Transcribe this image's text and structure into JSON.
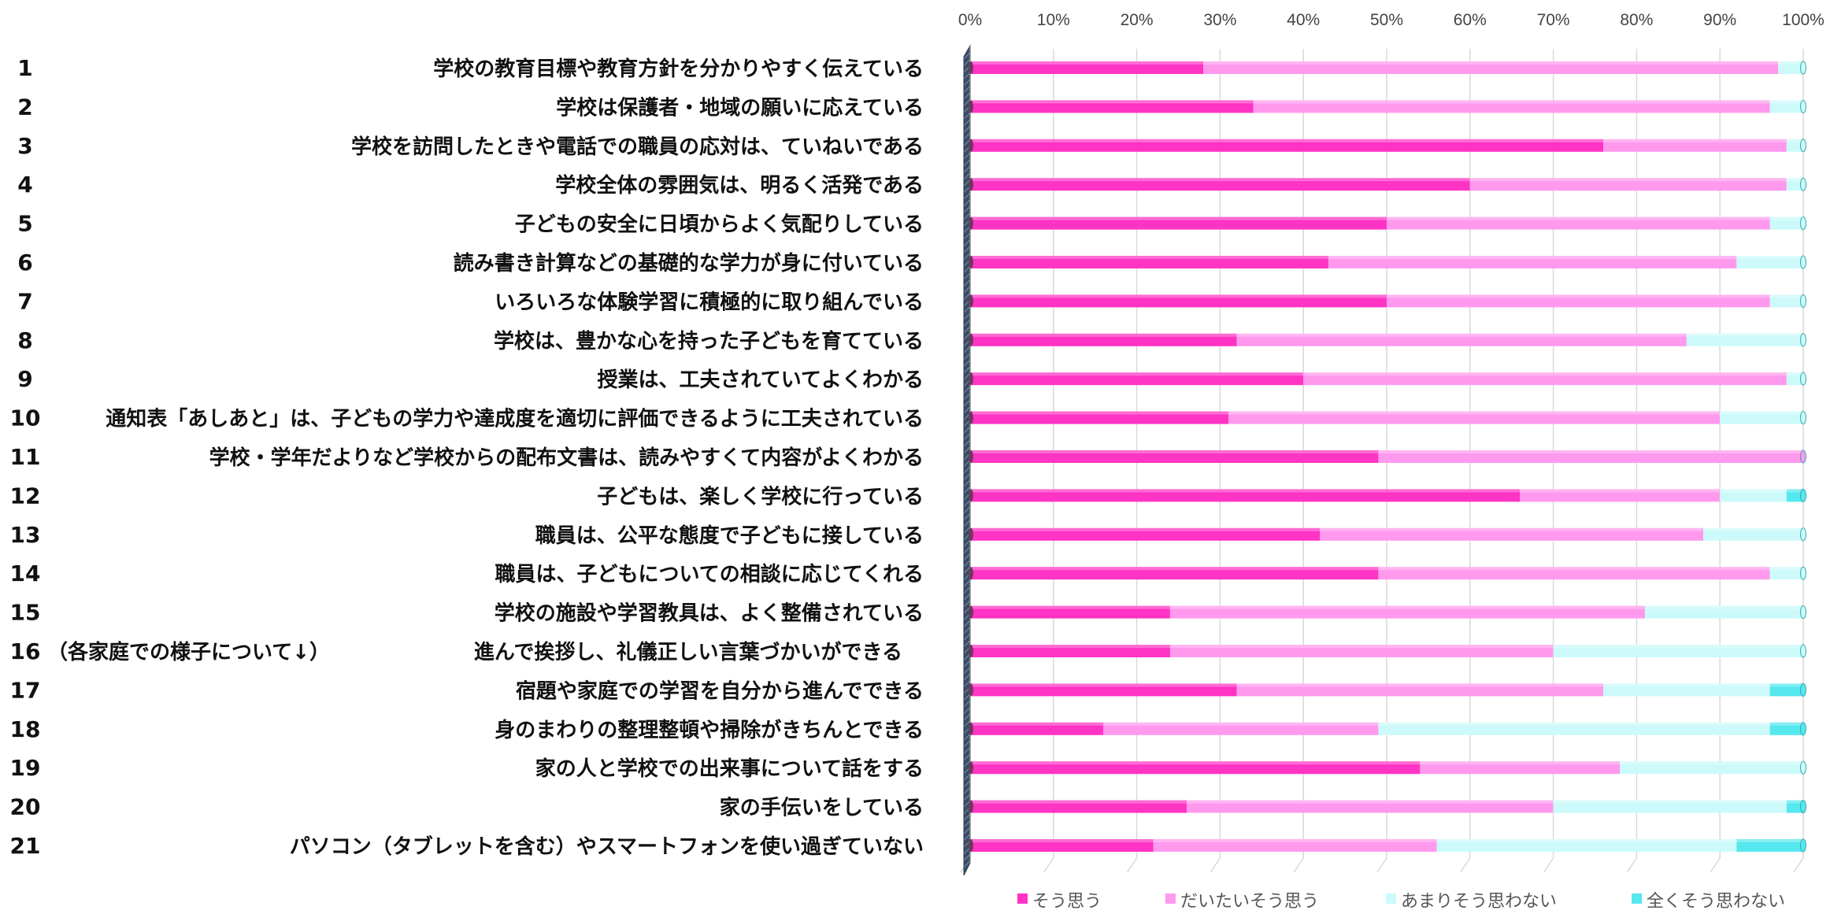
{
  "chart_data": {
    "type": "bar",
    "orientation": "horizontal",
    "stacked": true,
    "percent": true,
    "xlim": [
      0,
      100
    ],
    "x_ticks": [
      "0%",
      "10%",
      "20%",
      "30%",
      "40%",
      "50%",
      "60%",
      "70%",
      "80%",
      "90%",
      "100%"
    ],
    "grid": true,
    "legend_position": "bottom",
    "numbers": [
      "1",
      "2",
      "3",
      "4",
      "5",
      "6",
      "7",
      "8",
      "9",
      "10",
      "11",
      "12",
      "13",
      "14",
      "15",
      "16",
      "17",
      "18",
      "19",
      "20",
      "21"
    ],
    "categories": [
      "学校の教育目標や教育方針を分かりやすく伝えている",
      "学校は保護者・地域の願いに応えている",
      "学校を訪問したときや電話での職員の応対は、ていねいである",
      "学校全体の雰囲気は、明るく活発である",
      "子どもの安全に日頃からよく気配りしている",
      "読み書き計算などの基礎的な学力が身に付いている",
      "いろいろな体験学習に積極的に取り組んでいる",
      "学校は、豊かな心を持った子どもを育てている",
      "授業は、工夫されていてよくわかる",
      "通知表「あしあと」は、子どもの学力や達成度を適切に評価できるように工夫されている",
      "学校・学年だよりなど学校からの配布文書は、読みやすくて内容がよくわかる",
      "子どもは、楽しく学校に行っている",
      "職員は、公平な態度で子どもに接している",
      "職員は、子どもについての相談に応じてくれる",
      "学校の施設や学習教具は、よく整備されている",
      "進んで挨拶し、礼儀正しい言葉づかいができる",
      "宿題や家庭での学習を自分から進んでできる",
      "身のまわりの整理整頓や掃除がきちんとできる",
      "家の人と学校での出来事について話をする",
      "家の手伝いをしている",
      "パソコン（タブレットを含む）やスマートフォンを使い過ぎていない"
    ],
    "section_note": "（各家庭での様子について↓）",
    "series": [
      {
        "name": "そう思う",
        "color": "#ff33c4",
        "values": [
          28,
          34,
          76,
          60,
          50,
          43,
          50,
          32,
          40,
          31,
          49,
          66,
          42,
          49,
          24,
          24,
          32,
          16,
          54,
          26,
          22
        ]
      },
      {
        "name": "だいたいそう思う",
        "color": "#ff99ee",
        "values": [
          69,
          62,
          22,
          38,
          46,
          49,
          46,
          54,
          58,
          59,
          51,
          24,
          46,
          47,
          57,
          46,
          44,
          33,
          24,
          44,
          34
        ]
      },
      {
        "name": "あまりそう思わない",
        "color": "#ccfafa",
        "values": [
          3,
          4,
          2,
          2,
          4,
          8,
          4,
          14,
          2,
          10,
          0,
          8,
          12,
          4,
          19,
          30,
          20,
          47,
          22,
          28,
          36
        ]
      },
      {
        "name": "全くそう思わない",
        "color": "#55e8ee",
        "values": [
          0,
          0,
          0,
          0,
          0,
          0,
          0,
          0,
          0,
          0,
          0,
          2,
          0,
          0,
          0,
          0,
          4,
          4,
          0,
          2,
          8
        ]
      }
    ]
  }
}
